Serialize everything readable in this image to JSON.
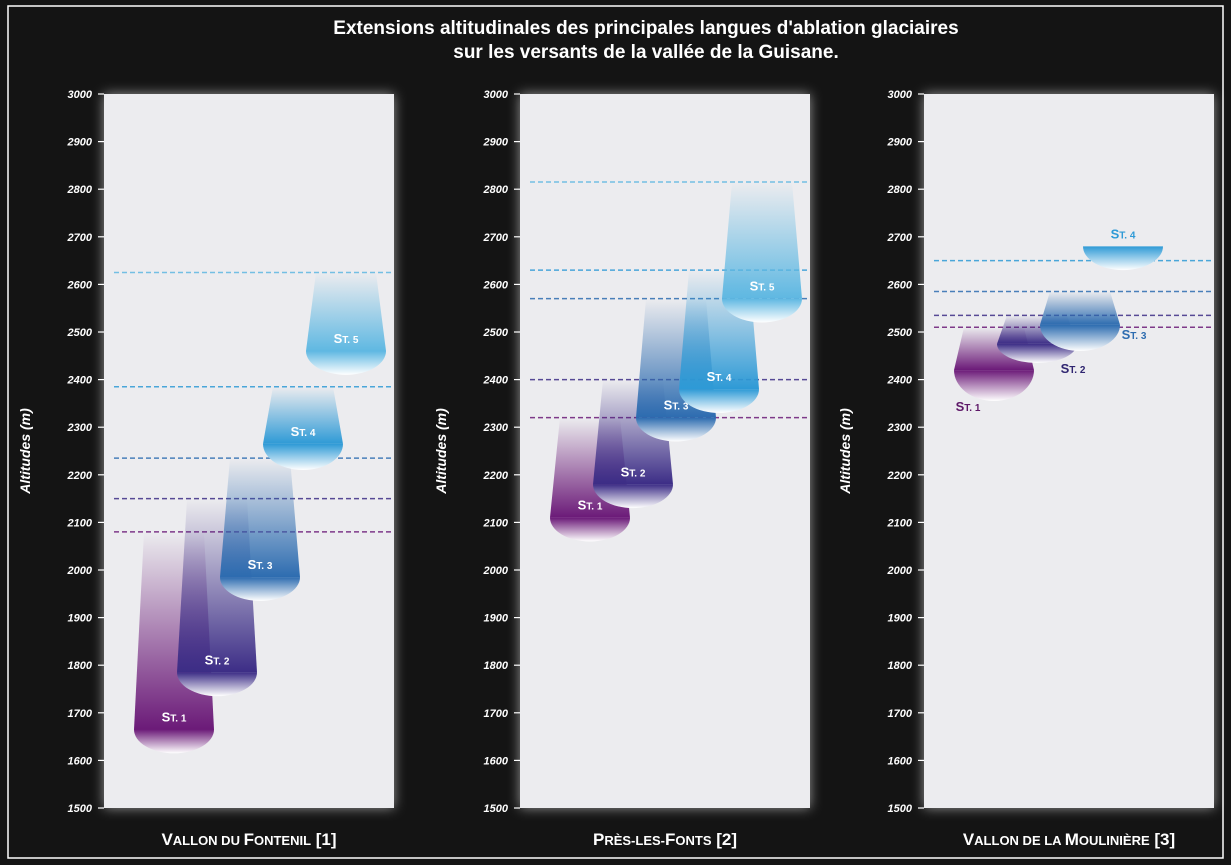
{
  "title_lines": [
    "Extensions altitudinales des principales langues d'ablation glaciaires",
    "sur les versants de la vallée de la Guisane."
  ],
  "colors": {
    "background": "#141414",
    "panel": "#ececef",
    "frame": "#ffffff",
    "stage_1": "#6b1a78",
    "stage_2": "#3c2d86",
    "stage_3": "#2d6cb0",
    "stage_4": "#2e9ad6",
    "stage_5": "#5fb8e2"
  },
  "chart_data": [
    {
      "type": "range",
      "ylabel": "Altitudes (m)",
      "ylim": [
        1500,
        3000
      ],
      "yticks": [
        "1500",
        "1600",
        "1700",
        "1800",
        "1900",
        "2000",
        "2100",
        "2200",
        "2300",
        "2400",
        "2500",
        "2600",
        "2700",
        "2800",
        "2900",
        "3000"
      ],
      "xlabel": {
        "initial": "V",
        "rest": "ALLON DU ",
        "initial2": "F",
        "rest2": "ONTENIL",
        "suffix": " [1]"
      },
      "stages": [
        {
          "label": {
            "initial": "S",
            "rest": "T. 1"
          },
          "color_key": "stage_1",
          "label_color": "#ffffff",
          "top": 2080,
          "front": 1665,
          "bottom": 1615,
          "lower_bound": 2080
        },
        {
          "label": {
            "initial": "S",
            "rest": "T. 2"
          },
          "color_key": "stage_2",
          "label_color": "#ffffff",
          "top": 2150,
          "front": 1785,
          "bottom": 1735,
          "lower_bound": 2150
        },
        {
          "label": {
            "initial": "S",
            "rest": "T. 3"
          },
          "color_key": "stage_3",
          "label_color": "#ffffff",
          "top": 2235,
          "front": 1985,
          "bottom": 1935,
          "lower_bound": 2235
        },
        {
          "label": {
            "initial": "S",
            "rest": "T. 4"
          },
          "color_key": "stage_4",
          "label_color": "#ffffff",
          "top": 2385,
          "front": 2265,
          "bottom": 2210,
          "lower_bound": 2385
        },
        {
          "label": {
            "initial": "S",
            "rest": "T. 5"
          },
          "color_key": "stage_5",
          "label_color": "#ffffff",
          "top": 2625,
          "front": 2460,
          "bottom": 2410,
          "lower_bound": 2625
        }
      ]
    },
    {
      "type": "range",
      "ylabel": "Altitudes (m)",
      "ylim": [
        1500,
        3000
      ],
      "yticks": [
        "1500",
        "1600",
        "1700",
        "1800",
        "1900",
        "2000",
        "2100",
        "2200",
        "2300",
        "2400",
        "2500",
        "2600",
        "2700",
        "2800",
        "2900",
        "3000"
      ],
      "xlabel": {
        "initial": "P",
        "rest": "RÈS-LES-",
        "initial2": "F",
        "rest2": "ONTS",
        "suffix": " [2]"
      },
      "stages": [
        {
          "label": {
            "initial": "S",
            "rest": "T. 1"
          },
          "color_key": "stage_1",
          "label_color": "#ffffff",
          "top": 2320,
          "front": 2110,
          "bottom": 2060,
          "lower_bound": 2320
        },
        {
          "label": {
            "initial": "S",
            "rest": "T. 2"
          },
          "color_key": "stage_2",
          "label_color": "#ffffff",
          "top": 2400,
          "front": 2180,
          "bottom": 2130,
          "lower_bound": 2400
        },
        {
          "label": {
            "initial": "S",
            "rest": "T. 3"
          },
          "color_key": "stage_3",
          "label_color": "#ffffff",
          "top": 2570,
          "front": 2320,
          "bottom": 2270,
          "lower_bound": 2570
        },
        {
          "label": {
            "initial": "S",
            "rest": "T. 4"
          },
          "color_key": "stage_4",
          "label_color": "#ffffff",
          "top": 2630,
          "front": 2380,
          "bottom": 2330,
          "lower_bound": 2630
        },
        {
          "label": {
            "initial": "S",
            "rest": "T. 5"
          },
          "color_key": "stage_5",
          "label_color": "#ffffff",
          "top": 2815,
          "front": 2570,
          "bottom": 2520,
          "lower_bound": 2815
        }
      ]
    },
    {
      "type": "range",
      "ylabel": "Altitudes (m)",
      "ylim": [
        1500,
        3000
      ],
      "yticks": [
        "1500",
        "1600",
        "1700",
        "1800",
        "1900",
        "2000",
        "2100",
        "2200",
        "2300",
        "2400",
        "2500",
        "2600",
        "2700",
        "2800",
        "2900",
        "3000"
      ],
      "xlabel": {
        "initial": "V",
        "rest": "ALLON DE LA ",
        "initial2": "M",
        "rest2": "OULINIÈRE",
        "suffix": " [3]"
      },
      "stages": [
        {
          "label": {
            "initial": "S",
            "rest": "T. 1"
          },
          "color_key": "stage_1",
          "label_color": "#5e1868",
          "top": 2510,
          "front": 2420,
          "bottom": 2355,
          "lower_bound": 2510
        },
        {
          "label": {
            "initial": "S",
            "rest": "T. 2"
          },
          "color_key": "stage_2",
          "label_color": "#2f2570",
          "top": 2535,
          "front": 2475,
          "bottom": 2435,
          "lower_bound": 2535
        },
        {
          "label": {
            "initial": "S",
            "rest": "T. 3"
          },
          "color_key": "stage_3",
          "label_color": "#2d6cb0",
          "top": 2585,
          "front": 2515,
          "bottom": 2460,
          "lower_bound": 2585
        },
        {
          "label": {
            "initial": "S",
            "rest": "T. 4"
          },
          "color_key": "stage_4",
          "label_color": "#2e9ad6",
          "top": 2680,
          "front": 2680,
          "bottom": 2630,
          "lower_bound": 2650
        }
      ]
    }
  ]
}
